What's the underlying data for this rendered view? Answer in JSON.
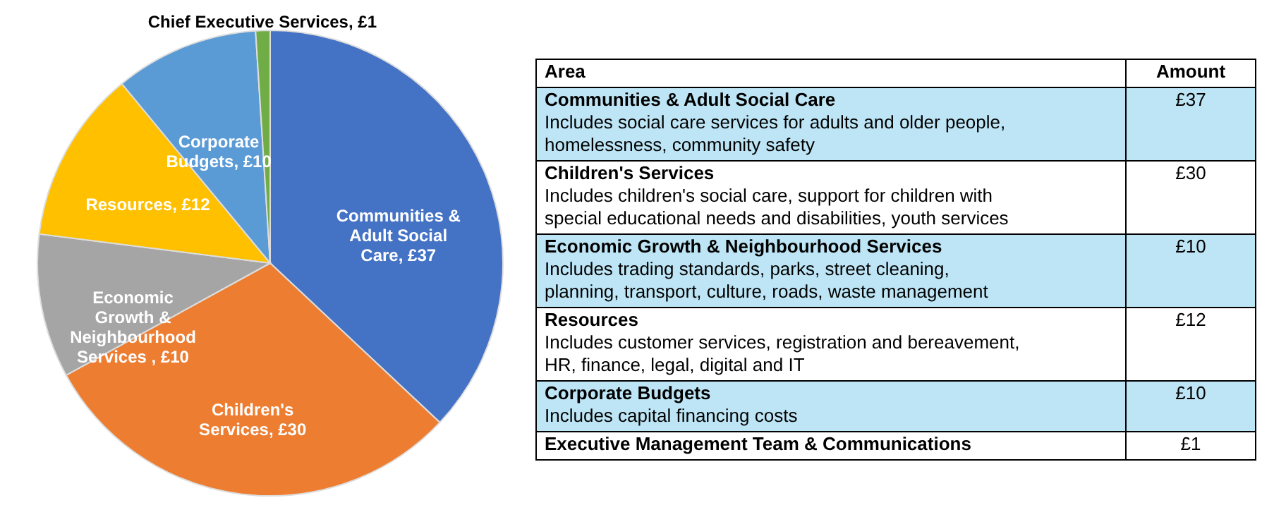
{
  "chart_data": [
    {
      "type": "pie",
      "categories": [
        "Communities & Adult Social Care, £37",
        "Children's Services, £30",
        "Economic Growth & Neighbourhood Services , £10",
        "Resources, £12",
        "Corporate Budgets, £10",
        "Chief Executive Services, £1"
      ],
      "values": [
        37,
        30,
        10,
        12,
        10,
        1
      ],
      "colors": [
        "#4472c4",
        "#ed7d31",
        "#a5a5a5",
        "#ffc000",
        "#5b9bd5",
        "#70ad47"
      ]
    },
    {
      "type": "other",
      "annotations": [
        "Area",
        "Amount",
        "Communities & Adult Social Care",
        "Includes social care services for adults and older people, homelessness, community safety",
        "£37",
        "Children's Services",
        "Includes children's social care, support for children with special educational needs and disabilities, youth services",
        "£30",
        "Economic Growth & Neighbourhood Services",
        "Includes trading standards, parks, street cleaning, planning, transport, culture, roads, waste management",
        "£10",
        "Resources",
        "Includes customer services, registration and bereavement, HR, finance, legal, digital and IT",
        "£12",
        "Corporate Budgets",
        "Includes capital financing costs",
        "£10",
        "Executive Management Team & Communications",
        "£1"
      ]
    }
  ]
}
